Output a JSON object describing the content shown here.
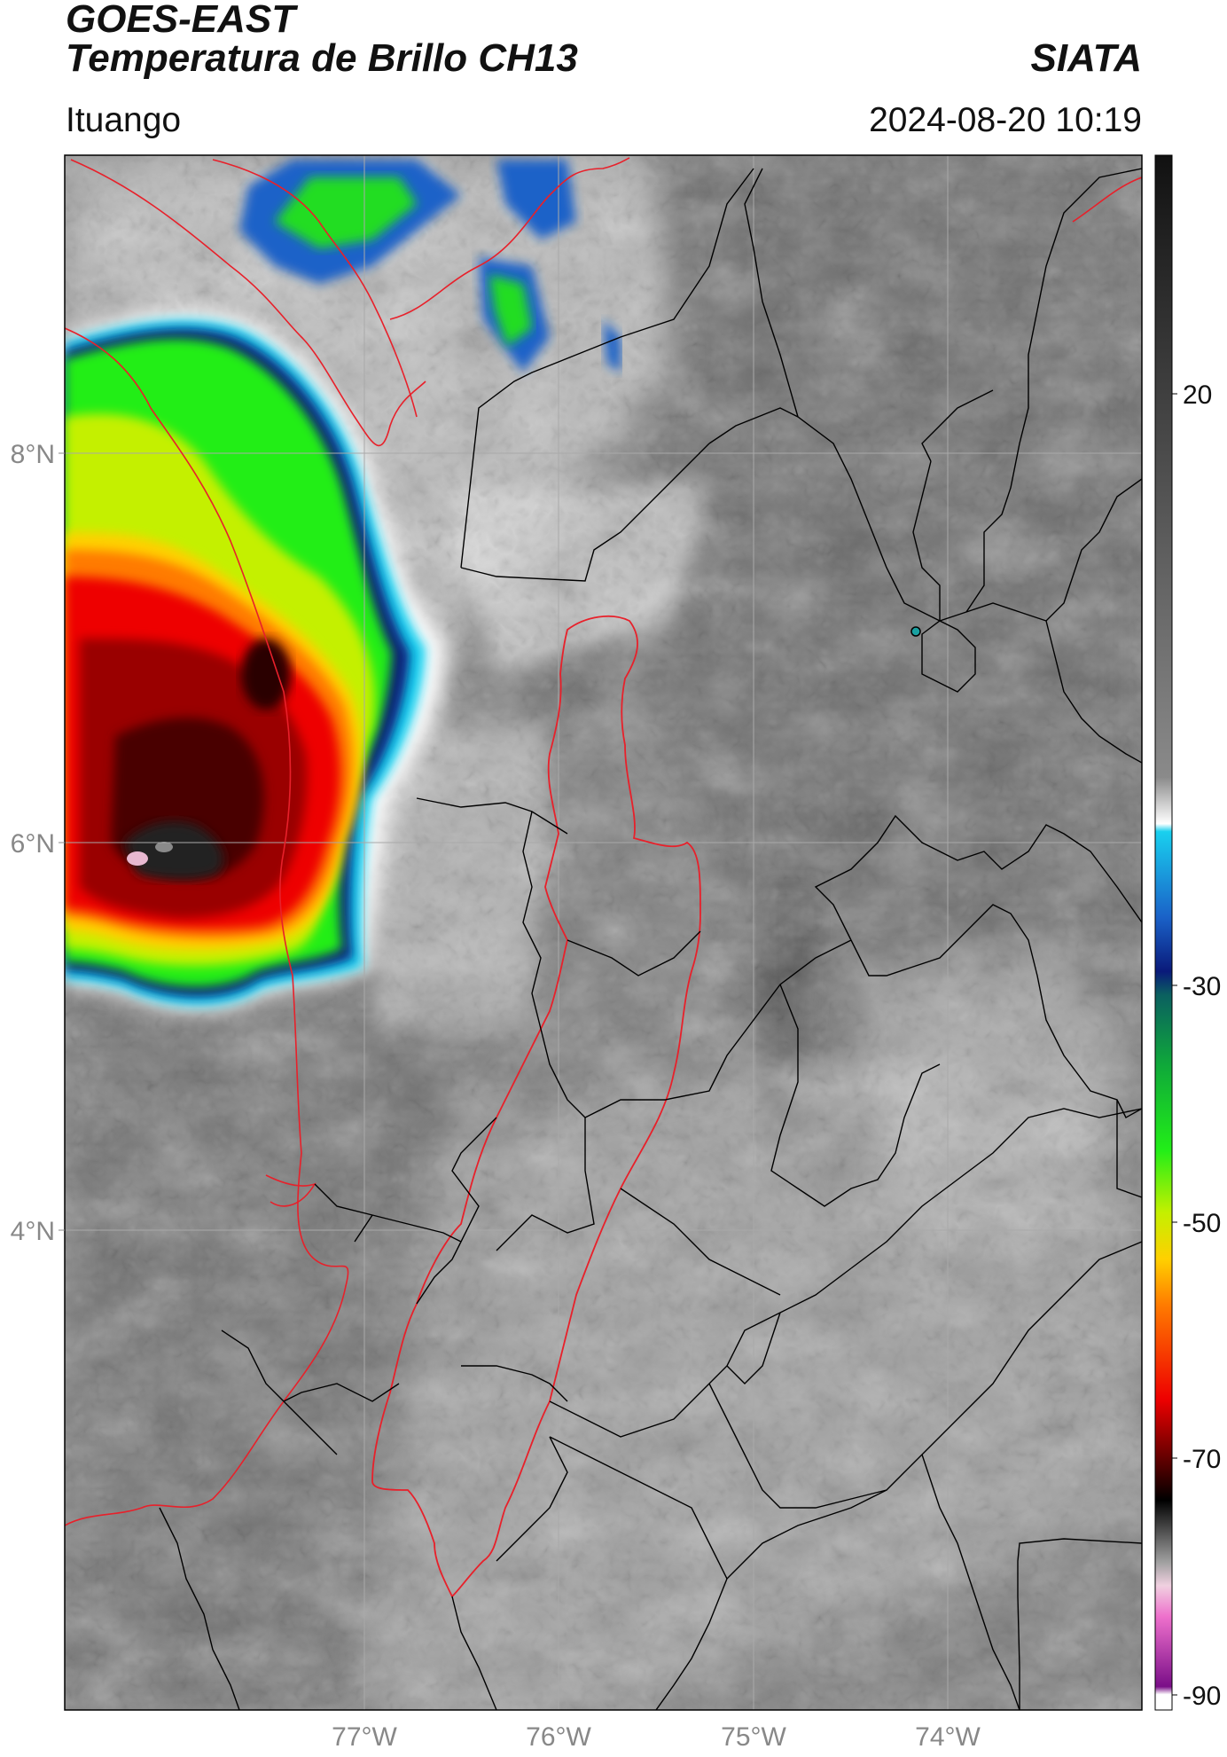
{
  "header": {
    "satellite": "GOES-EAST",
    "product": "Temperatura de Brillo CH13",
    "org": "SIATA",
    "region": "Ituango",
    "datetime": "2024-08-20 10:19"
  },
  "map": {
    "lat_ticks": [
      "8°N",
      "6°N",
      "4°N"
    ],
    "lon_ticks": [
      "77°W",
      "76°W",
      "75°W",
      "74°W"
    ],
    "border_color": "#000000",
    "coast_color": "#e8202a",
    "basin_color": "#e8202a"
  },
  "colorbar": {
    "tick_labels": [
      "20",
      "-30",
      "-50",
      "-70",
      "-90"
    ],
    "stops": [
      {
        "v": 0.0,
        "c": "#111111"
      },
      {
        "v": 0.4,
        "c": "#8a8a8a"
      },
      {
        "v": 0.43,
        "c": "#ffffff"
      },
      {
        "v": 0.435,
        "c": "#19d0ef"
      },
      {
        "v": 0.49,
        "c": "#1a62c8"
      },
      {
        "v": 0.525,
        "c": "#0a1a7a"
      },
      {
        "v": 0.54,
        "c": "#0b6060"
      },
      {
        "v": 0.585,
        "c": "#0fa83a"
      },
      {
        "v": 0.64,
        "c": "#22ee18"
      },
      {
        "v": 0.68,
        "c": "#c4f000"
      },
      {
        "v": 0.71,
        "c": "#ffd000"
      },
      {
        "v": 0.74,
        "c": "#ff7a00"
      },
      {
        "v": 0.8,
        "c": "#ee0000"
      },
      {
        "v": 0.845,
        "c": "#4a0000"
      },
      {
        "v": 0.865,
        "c": "#000000"
      },
      {
        "v": 0.905,
        "c": "#a0a0a0"
      },
      {
        "v": 0.92,
        "c": "#f0d0e0"
      },
      {
        "v": 0.94,
        "c": "#ee70cc"
      },
      {
        "v": 0.985,
        "c": "#7a0e88"
      },
      {
        "v": 0.99,
        "c": "#ffffff"
      },
      {
        "v": 1.0,
        "c": "#ffffff"
      }
    ]
  }
}
